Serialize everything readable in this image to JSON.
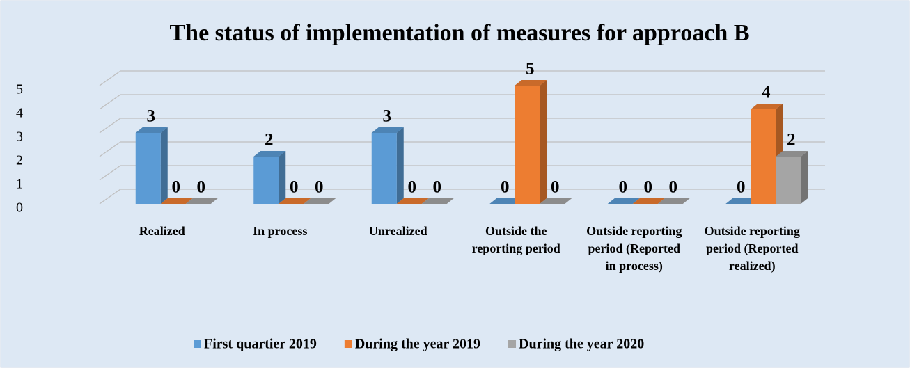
{
  "chart_data": {
    "type": "bar3d",
    "title": "The status of implementation of measures for approach B",
    "categories": [
      "Realized",
      "In process",
      "Unrealized",
      "Outside the reporting period",
      "Outside reporting period (Reported in process)",
      "Outside reporting period (Reported realized)"
    ],
    "series": [
      {
        "name": "First quartier 2019",
        "color": "#5b9bd5",
        "values": [
          3,
          2,
          3,
          0,
          0,
          0
        ]
      },
      {
        "name": "During the year 2019",
        "color": "#ed7d31",
        "values": [
          0,
          0,
          0,
          5,
          0,
          4
        ]
      },
      {
        "name": "During the year 2020",
        "color": "#a5a5a5",
        "values": [
          0,
          0,
          0,
          0,
          0,
          2
        ]
      }
    ],
    "ylim": [
      0,
      5
    ],
    "yticks": [
      0,
      1,
      2,
      3,
      4,
      5
    ],
    "grid": true,
    "legend": "bottom"
  }
}
